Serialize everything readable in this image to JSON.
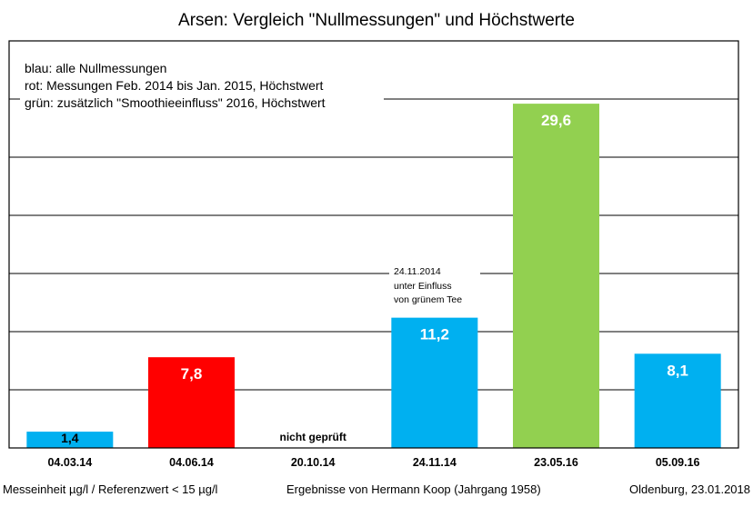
{
  "chart_data": {
    "type": "bar",
    "title": "Arsen: Vergleich \"Nullmessungen\" und Höchstwerte",
    "categories": [
      "04.03.14",
      "04.06.14",
      "20.10.14",
      "24.11.14",
      "23.05.16",
      "05.09.16"
    ],
    "values": [
      1.4,
      7.8,
      null,
      11.2,
      29.6,
      8.1
    ],
    "value_labels": [
      "1,4",
      "7,8",
      "nicht geprüft",
      "11,2",
      "29,6",
      "8,1"
    ],
    "bar_colors": [
      "#00b0f0",
      "#ff0000",
      null,
      "#00b0f0",
      "#92d050",
      "#00b0f0"
    ],
    "ylim": [
      0,
      35
    ],
    "grid_step": 5,
    "grid": true,
    "xlabel": "",
    "ylabel": "",
    "legend": {
      "placement": "top-left",
      "lines": [
        "blau: alle Nullmessungen",
        "rot: Messungen Feb. 2014 bis Jan. 2015, Höchstwert",
        "grün: zusätzlich \"Smoothieeinfluss\" 2016, Höchstwert"
      ]
    },
    "annotation": {
      "category": "24.11.14",
      "lines": [
        "24.11.2014",
        "unter Einfluss",
        "von grünem Tee"
      ]
    }
  },
  "footer": {
    "left": "Messeinheit µg/l / Referenzwert < 15 µg/l",
    "center": "Ergebnisse von Hermann Koop (Jahrgang 1958)",
    "right": "Oldenburg,  23.01.2018"
  }
}
